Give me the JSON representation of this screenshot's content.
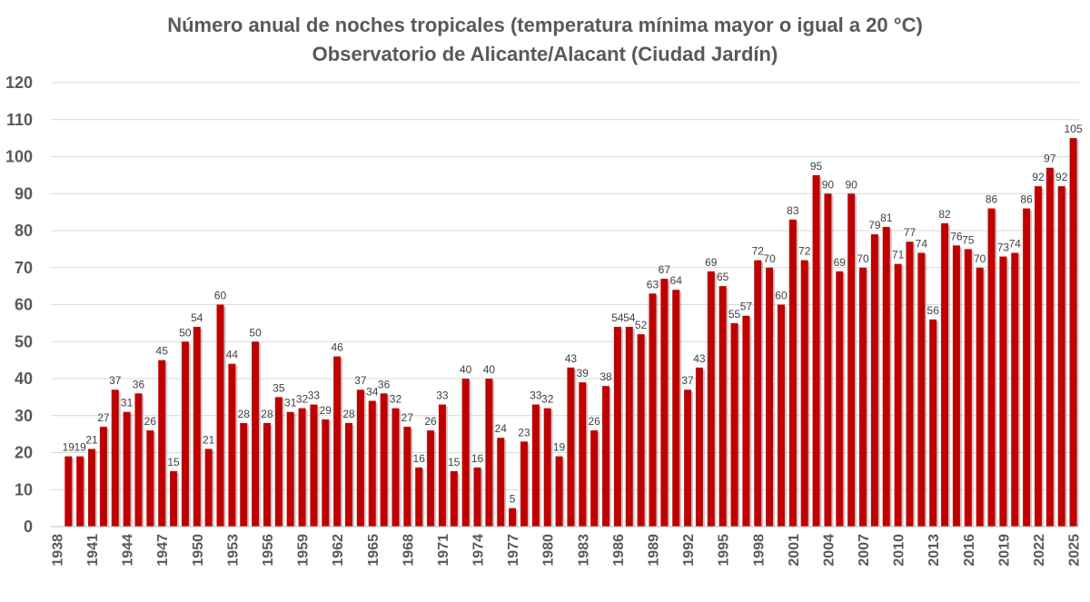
{
  "chart_data": {
    "type": "bar",
    "title": "Número anual de noches tropicales (temperatura mínima mayor o igual a 20 °C)",
    "subtitle": "Observatorio de Alicante/Alacant (Ciudad Jardín)",
    "xlabel": "",
    "ylabel": "",
    "ylim": [
      0,
      120
    ],
    "yticks": [
      0,
      10,
      20,
      30,
      40,
      50,
      60,
      70,
      80,
      90,
      100,
      110,
      120
    ],
    "x_tick_labels": [
      "1938",
      "1941",
      "1944",
      "1947",
      "1950",
      "1953",
      "1956",
      "1959",
      "1962",
      "1965",
      "1968",
      "1971",
      "1974",
      "1977",
      "1980",
      "1983",
      "1986",
      "1989",
      "1992",
      "1995",
      "1998",
      "2001",
      "2004",
      "2007",
      "2010",
      "2013",
      "2016",
      "2019",
      "2022",
      "2025"
    ],
    "grid": "horizontal",
    "legend": "none",
    "bar_color": "#c00000",
    "categories": [
      "1939",
      "1940",
      "1941",
      "1942",
      "1943",
      "1944",
      "1945",
      "1946",
      "1947",
      "1948",
      "1949",
      "1950",
      "1951",
      "1952",
      "1953",
      "1954",
      "1955",
      "1956",
      "1957",
      "1958",
      "1959",
      "1960",
      "1961",
      "1962",
      "1963",
      "1964",
      "1965",
      "1966",
      "1967",
      "1968",
      "1969",
      "1970",
      "1971",
      "1972",
      "1973",
      "1974",
      "1975",
      "1976",
      "1977",
      "1978",
      "1979",
      "1980",
      "1981",
      "1982",
      "1983",
      "1984",
      "1985",
      "1986",
      "1987",
      "1988",
      "1989",
      "1990",
      "1991",
      "1992",
      "1993",
      "1994",
      "1995",
      "1996",
      "1997",
      "1998",
      "1999",
      "2000",
      "2001",
      "2002",
      "2003",
      "2004",
      "2005",
      "2006",
      "2007",
      "2008",
      "2009",
      "2010",
      "2011",
      "2012",
      "2013",
      "2014",
      "2015",
      "2016",
      "2017",
      "2018",
      "2019",
      "2020",
      "2021",
      "2022",
      "2023",
      "2024",
      "2025"
    ],
    "values": [
      19,
      19,
      21,
      27,
      37,
      31,
      36,
      26,
      45,
      15,
      50,
      54,
      21,
      60,
      44,
      28,
      50,
      28,
      35,
      31,
      32,
      33,
      29,
      46,
      28,
      37,
      34,
      36,
      32,
      27,
      16,
      26,
      33,
      15,
      40,
      16,
      40,
      24,
      5,
      23,
      33,
      32,
      19,
      43,
      39,
      26,
      38,
      54,
      54,
      52,
      63,
      67,
      64,
      37,
      43,
      69,
      65,
      55,
      57,
      72,
      70,
      60,
      83,
      72,
      95,
      90,
      69,
      90,
      70,
      79,
      81,
      71,
      77,
      74,
      56,
      82,
      76,
      75,
      70,
      86,
      73,
      74,
      86,
      92,
      97,
      92,
      105
    ]
  }
}
